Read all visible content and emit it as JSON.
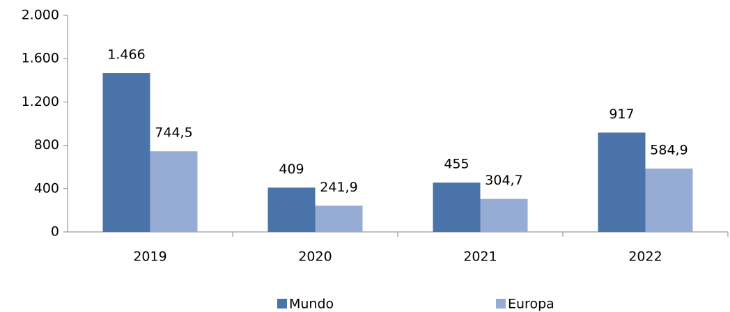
{
  "chart_data": {
    "type": "bar",
    "categories": [
      "2019",
      "2020",
      "2021",
      "2022"
    ],
    "series": [
      {
        "name": "Mundo",
        "color": "#4a74a9",
        "values": [
          1466,
          409,
          455,
          917
        ],
        "value_labels": [
          "1.466",
          "409",
          "455",
          "917"
        ]
      },
      {
        "name": "Europa",
        "color": "#97acd5",
        "values": [
          744.5,
          241.9,
          304.7,
          584.9
        ],
        "value_labels": [
          "744,5",
          "241,9",
          "304,7",
          "584,9"
        ]
      }
    ],
    "ylim": [
      0,
      2000
    ],
    "yticks": [
      0,
      400,
      800,
      {
        "value": 1200,
        "label": "1.200"
      },
      {
        "value": 1600,
        "label": "1.600"
      },
      {
        "value": 2000,
        "label": "2.000"
      }
    ],
    "grid": false,
    "legend": "bottom"
  }
}
